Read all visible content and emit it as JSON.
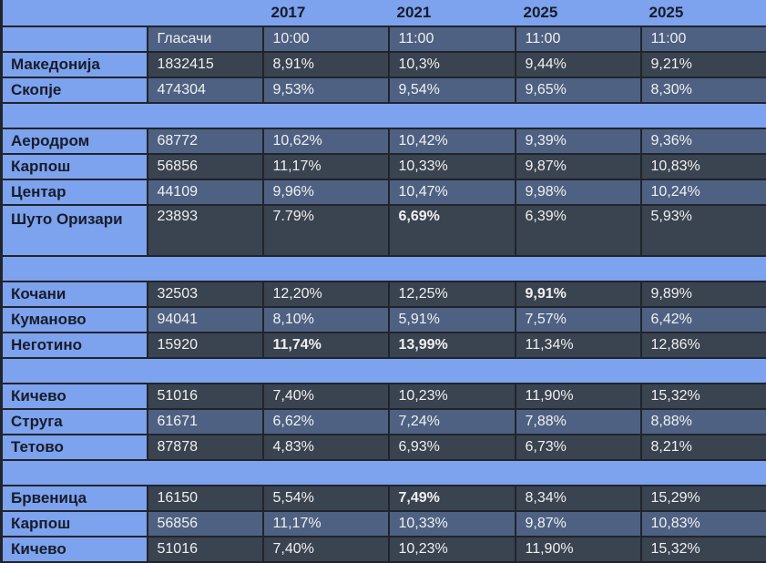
{
  "colors": {
    "page_bg": "#7da2ee",
    "cell_dark": "#3a4350",
    "cell_medium": "#4e6182",
    "border": "#20242c",
    "dark_text": "#171c2a",
    "light_text": "#f0f0f0"
  },
  "table": {
    "years": [
      "2017",
      "2021",
      "2025",
      "2025"
    ],
    "voters_header": "Гласачи",
    "time_headers": [
      "10:00",
      "11:00",
      "11:00",
      "11:00"
    ],
    "rows": [
      {
        "type": "data",
        "name": "Македонија",
        "voters": "1832415",
        "shade": "dark",
        "tall": false,
        "values": [
          {
            "text": "8,91%",
            "bold": false
          },
          {
            "text": "10,3%",
            "bold": false
          },
          {
            "text": "9,44%",
            "bold": false
          },
          {
            "text": "9,21%",
            "bold": false
          }
        ]
      },
      {
        "type": "data",
        "name": "Скопје",
        "voters": "474304",
        "shade": "medium",
        "tall": false,
        "values": [
          {
            "text": "9,53%",
            "bold": false
          },
          {
            "text": "9,54%",
            "bold": false
          },
          {
            "text": "9,65%",
            "bold": false
          },
          {
            "text": "8,30%",
            "bold": false
          }
        ]
      },
      {
        "type": "spacer"
      },
      {
        "type": "data",
        "name": "Аеродром",
        "voters": "68772",
        "shade": "medium",
        "tall": false,
        "values": [
          {
            "text": "10,62%",
            "bold": false
          },
          {
            "text": "10,42%",
            "bold": false
          },
          {
            "text": "9,39%",
            "bold": false
          },
          {
            "text": "9,36%",
            "bold": false
          }
        ]
      },
      {
        "type": "data",
        "name": "Карпош",
        "voters": "56856",
        "shade": "dark",
        "tall": false,
        "values": [
          {
            "text": "11,17%",
            "bold": false
          },
          {
            "text": "10,33%",
            "bold": false
          },
          {
            "text": "9,87%",
            "bold": false
          },
          {
            "text": "10,83%",
            "bold": false
          }
        ]
      },
      {
        "type": "data",
        "name": "Центар",
        "voters": "44109",
        "shade": "medium",
        "tall": false,
        "values": [
          {
            "text": "9,96%",
            "bold": false
          },
          {
            "text": "10,47%",
            "bold": false
          },
          {
            "text": "9,98%",
            "bold": false
          },
          {
            "text": "10,24%",
            "bold": false
          }
        ]
      },
      {
        "type": "data",
        "name": "Шуто Оризари",
        "voters": "23893",
        "shade": "dark",
        "tall": true,
        "values": [
          {
            "text": "7.79%",
            "bold": false
          },
          {
            "text": "6,69%",
            "bold": true
          },
          {
            "text": "6,39%",
            "bold": false
          },
          {
            "text": "5,93%",
            "bold": false
          }
        ]
      },
      {
        "type": "spacer"
      },
      {
        "type": "data",
        "name": "Кочани",
        "voters": "32503",
        "shade": "dark",
        "tall": false,
        "values": [
          {
            "text": "12,20%",
            "bold": false
          },
          {
            "text": "12,25%",
            "bold": false
          },
          {
            "text": "9,91%",
            "bold": true
          },
          {
            "text": "9,89%",
            "bold": false
          }
        ]
      },
      {
        "type": "data",
        "name": "Куманово",
        "voters": "94041",
        "shade": "medium",
        "tall": false,
        "values": [
          {
            "text": "8,10%",
            "bold": false
          },
          {
            "text": "5,91%",
            "bold": false
          },
          {
            "text": "7,57%",
            "bold": false
          },
          {
            "text": "6,42%",
            "bold": false
          }
        ]
      },
      {
        "type": "data",
        "name": "Неготино",
        "voters": "15920",
        "shade": "dark",
        "tall": false,
        "values": [
          {
            "text": "11,74%",
            "bold": true
          },
          {
            "text": "13,99%",
            "bold": true
          },
          {
            "text": "11,34%",
            "bold": false
          },
          {
            "text": "12,86%",
            "bold": false
          }
        ]
      },
      {
        "type": "spacer"
      },
      {
        "type": "data",
        "name": "Кичево",
        "voters": "51016",
        "shade": "dark",
        "tall": false,
        "values": [
          {
            "text": "7,40%",
            "bold": false
          },
          {
            "text": "10,23%",
            "bold": false
          },
          {
            "text": "11,90%",
            "bold": false
          },
          {
            "text": "15,32%",
            "bold": false
          }
        ]
      },
      {
        "type": "data",
        "name": "Струга",
        "voters": "61671",
        "shade": "medium",
        "tall": false,
        "values": [
          {
            "text": "6,62%",
            "bold": false
          },
          {
            "text": "7,24%",
            "bold": false
          },
          {
            "text": "7,88%",
            "bold": false
          },
          {
            "text": "8,88%",
            "bold": false
          }
        ]
      },
      {
        "type": "data",
        "name": "Тетово",
        "voters": "87878",
        "shade": "dark",
        "tall": false,
        "values": [
          {
            "text": "4,83%",
            "bold": false
          },
          {
            "text": "6,93%",
            "bold": false
          },
          {
            "text": "6,73%",
            "bold": false
          },
          {
            "text": "8,21%",
            "bold": false
          }
        ]
      },
      {
        "type": "spacer"
      },
      {
        "type": "data",
        "name": "Брвеница",
        "voters": "16150",
        "shade": "dark",
        "tall": false,
        "values": [
          {
            "text": "5,54%",
            "bold": false
          },
          {
            "text": "7,49%",
            "bold": true
          },
          {
            "text": "8,34%",
            "bold": false
          },
          {
            "text": "15,29%",
            "bold": false
          }
        ]
      },
      {
        "type": "data",
        "name": "Карпош",
        "voters": "56856",
        "shade": "medium",
        "tall": false,
        "values": [
          {
            "text": "11,17%",
            "bold": false
          },
          {
            "text": "10,33%",
            "bold": false
          },
          {
            "text": "9,87%",
            "bold": false
          },
          {
            "text": "10,83%",
            "bold": false
          }
        ]
      },
      {
        "type": "data",
        "name": "Кичево",
        "voters": "51016",
        "shade": "dark",
        "tall": false,
        "values": [
          {
            "text": "7,40%",
            "bold": false
          },
          {
            "text": "10,23%",
            "bold": false
          },
          {
            "text": "11,90%",
            "bold": false
          },
          {
            "text": "15,32%",
            "bold": false
          }
        ]
      }
    ]
  }
}
